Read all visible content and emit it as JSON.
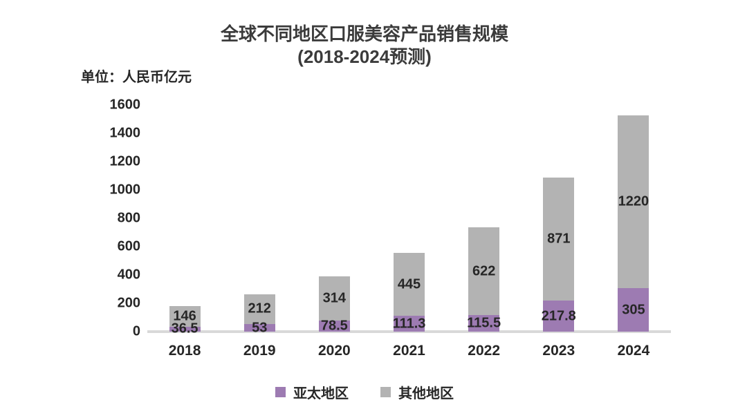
{
  "title": {
    "line1": "全球不同地区口服美容产品销售规模",
    "line2": "(2018-2024预测)"
  },
  "unit_label": "单位：人民币亿元",
  "chart_data": {
    "type": "bar",
    "stacked": true,
    "title": "全球不同地区口服美容产品销售规模 (2018-2024预测)",
    "ylabel": "单位：人民币亿元",
    "categories": [
      "2018",
      "2019",
      "2020",
      "2021",
      "2022",
      "2023",
      "2024"
    ],
    "series": [
      {
        "name": "亚太地区",
        "color": "#9d7bb2",
        "values": [
          36.5,
          53,
          78.5,
          111.3,
          115.5,
          217.8,
          305
        ]
      },
      {
        "name": "其他地区",
        "color": "#b3b3b3",
        "values": [
          146,
          212,
          314,
          445,
          622,
          871,
          1220
        ]
      }
    ],
    "ylim": [
      0,
      1600
    ],
    "yticks": [
      0,
      200,
      400,
      600,
      800,
      1000,
      1200,
      1400,
      1600
    ],
    "grid": false,
    "legend_position": "bottom"
  },
  "colors": {
    "axis_line": "#d9d9d9",
    "text": "#262626",
    "title_text": "#3b3b3b",
    "background": "#ffffff"
  }
}
